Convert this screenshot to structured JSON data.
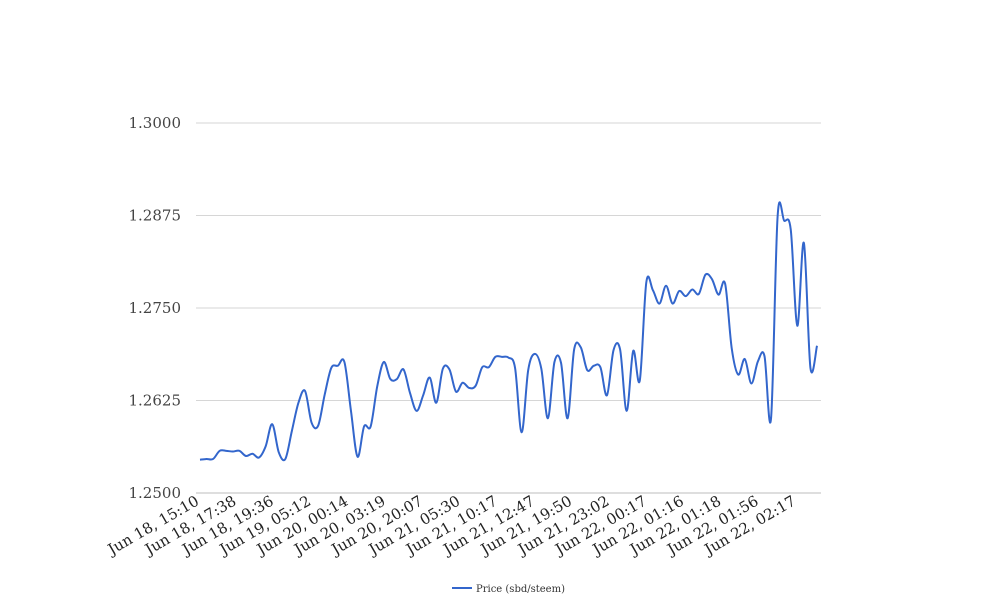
{
  "chart_data": {
    "type": "line",
    "title": "",
    "xlabel": "",
    "ylabel": "",
    "ylim": [
      1.25,
      1.3
    ],
    "yticks": [
      "1.2500",
      "1.2625",
      "1.2750",
      "1.2875",
      "1.3000"
    ],
    "ytick_values": [
      1.25,
      1.2625,
      1.275,
      1.2875,
      1.3
    ],
    "x_tick_labels": [
      "Jun 18, 15:10",
      "Jun 18, 17:38",
      "Jun 18, 19:36",
      "Jun 19, 05:12",
      "Jun 20, 00:14",
      "Jun 20, 03:19",
      "Jun 20, 20:07",
      "Jun 21, 05:30",
      "Jun 21, 10:17",
      "Jun 21, 12:47",
      "Jun 21, 19:50",
      "Jun 21, 23:02",
      "Jun 22, 00:17",
      "Jun 22, 01:16",
      "Jun 22, 01:18",
      "Jun 22, 01:56",
      "Jun 22, 02:17"
    ],
    "grid": true,
    "legend_position": "bottom",
    "line_color": "#3366cc",
    "series": [
      {
        "name": "Price (sbd/steem)",
        "values": [
          1.2545,
          1.2546,
          1.2546,
          1.2557,
          1.2557,
          1.2556,
          1.2557,
          1.255,
          1.2553,
          1.2548,
          1.2563,
          1.2593,
          1.2555,
          1.2546,
          1.2584,
          1.2622,
          1.2638,
          1.2595,
          1.2591,
          1.2633,
          1.2669,
          1.2672,
          1.2677,
          1.2611,
          1.2549,
          1.259,
          1.259,
          1.2644,
          1.2677,
          1.2654,
          1.2654,
          1.2667,
          1.2635,
          1.2611,
          1.2632,
          1.2656,
          1.2622,
          1.2668,
          1.2667,
          1.2637,
          1.2649,
          1.2642,
          1.2645,
          1.267,
          1.267,
          1.2684,
          1.2684,
          1.2683,
          1.2669,
          1.2582,
          1.2666,
          1.2688,
          1.2668,
          1.2601,
          1.2677,
          1.2676,
          1.2601,
          1.2694,
          1.2697,
          1.2666,
          1.2672,
          1.267,
          1.2632,
          1.2693,
          1.2694,
          1.2611,
          1.2692,
          1.2652,
          1.2785,
          1.2774,
          1.2756,
          1.278,
          1.2756,
          1.2773,
          1.2766,
          1.2775,
          1.2769,
          1.2795,
          1.2789,
          1.2768,
          1.2783,
          1.2696,
          1.266,
          1.2681,
          1.2648,
          1.2678,
          1.2685,
          1.2601,
          1.2874,
          1.2868,
          1.2856,
          1.2726,
          1.2838,
          1.2669,
          1.2699
        ]
      }
    ]
  }
}
